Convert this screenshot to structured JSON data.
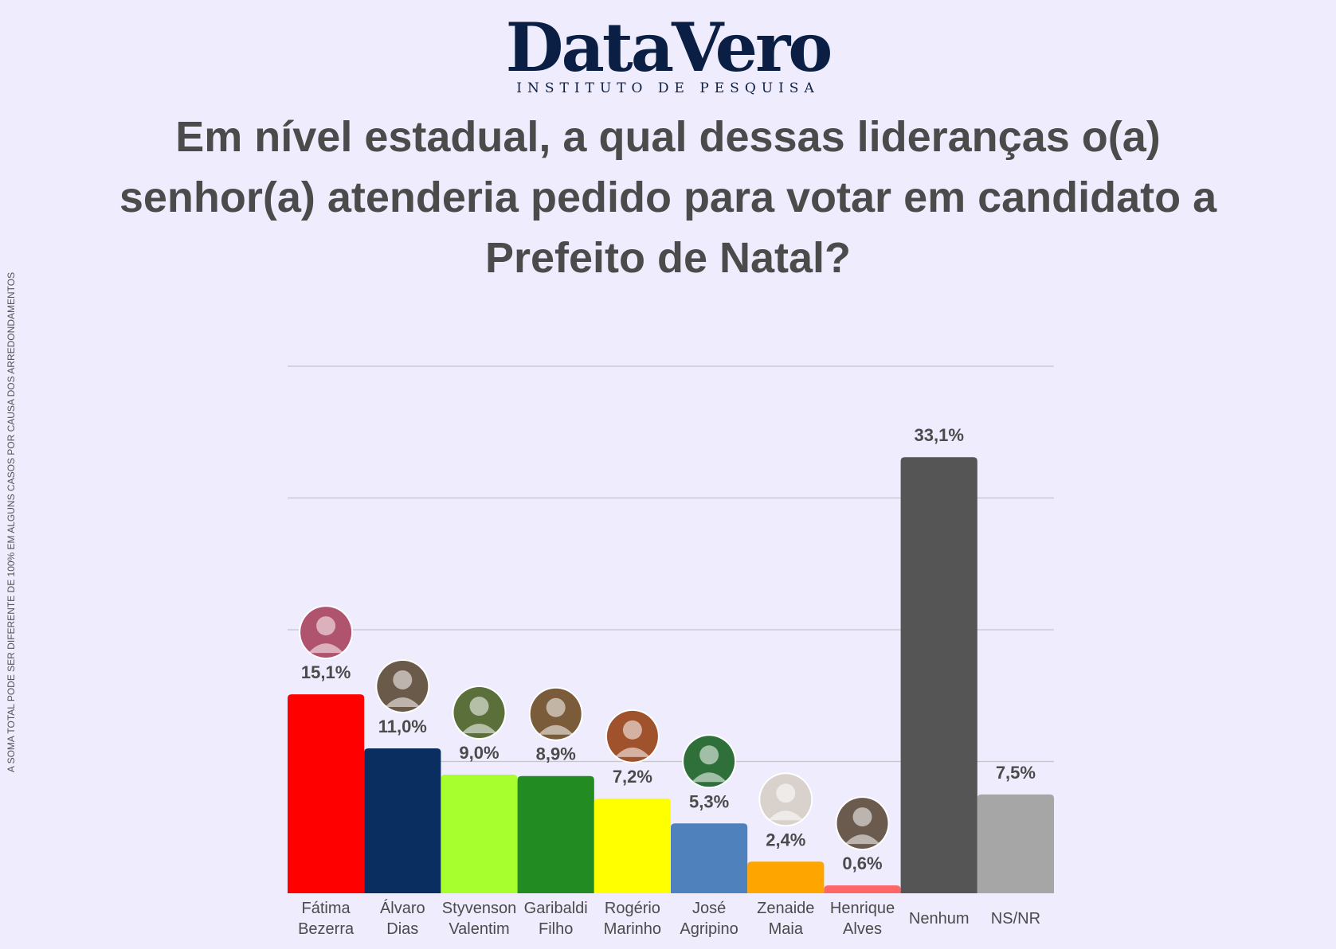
{
  "header": {
    "logo_text": "DataVero",
    "logo_subtitle": "INSTITUTO DE PESQUISA",
    "title": "Em nível estadual, a qual dessas lideranças o(a) senhor(a) atenderia pedido para votar em candidato a Prefeito de Natal?"
  },
  "footnote": "A SOMA TOTAL PODE SER DIFERENTE DE 100% EM ALGUNS CASOS POR CAUSA DOS ARREDONDAMENTOS",
  "chart_data": {
    "type": "bar",
    "title": "Em nível estadual, a qual dessas lideranças o(a) senhor(a) atenderia pedido para votar em candidato a Prefeito de Natal?",
    "xlabel": "",
    "ylabel": "",
    "ylim": [
      0,
      40
    ],
    "grid": true,
    "legend": "none",
    "categories": [
      [
        "Fátima",
        "Bezerra"
      ],
      [
        "Álvaro",
        "Dias"
      ],
      [
        "Styvenson",
        "Valentim"
      ],
      [
        "Garibaldi",
        "Filho"
      ],
      [
        "Rogério",
        "Marinho"
      ],
      [
        "José",
        "Agripino"
      ],
      [
        "Zenaide",
        "Maia"
      ],
      [
        "Henrique",
        "Alves"
      ],
      [
        "Nenhum"
      ],
      [
        "NS/NR"
      ]
    ],
    "values": [
      15.1,
      11.0,
      9.0,
      8.9,
      7.2,
      5.3,
      2.4,
      0.6,
      33.1,
      7.5
    ],
    "value_labels": [
      "15,1%",
      "11,0%",
      "9,0%",
      "8,9%",
      "7,2%",
      "5,3%",
      "2,4%",
      "0,6%",
      "33,1%",
      "7,5%"
    ],
    "colors": [
      "#ff0000",
      "#0a2e5f",
      "#a8ff2e",
      "#228b22",
      "#ffff00",
      "#4f81bd",
      "#ffa500",
      "#ff6666",
      "#555555",
      "#a6a6a6"
    ],
    "has_photo": [
      true,
      true,
      true,
      true,
      true,
      true,
      true,
      true,
      false,
      false
    ],
    "photo_colors": [
      "#b0536e",
      "#6a5a4a",
      "#5b6f3a",
      "#7a5b3a",
      "#a0522d",
      "#2f6f3a",
      "#d9d2cc",
      "#6b5a4e",
      "",
      ""
    ],
    "photo_icons": [
      "person-photo-icon",
      "person-photo-icon",
      "person-photo-icon",
      "person-photo-icon",
      "person-photo-icon",
      "person-photo-icon",
      "person-photo-icon",
      "person-photo-icon",
      "",
      ""
    ]
  }
}
